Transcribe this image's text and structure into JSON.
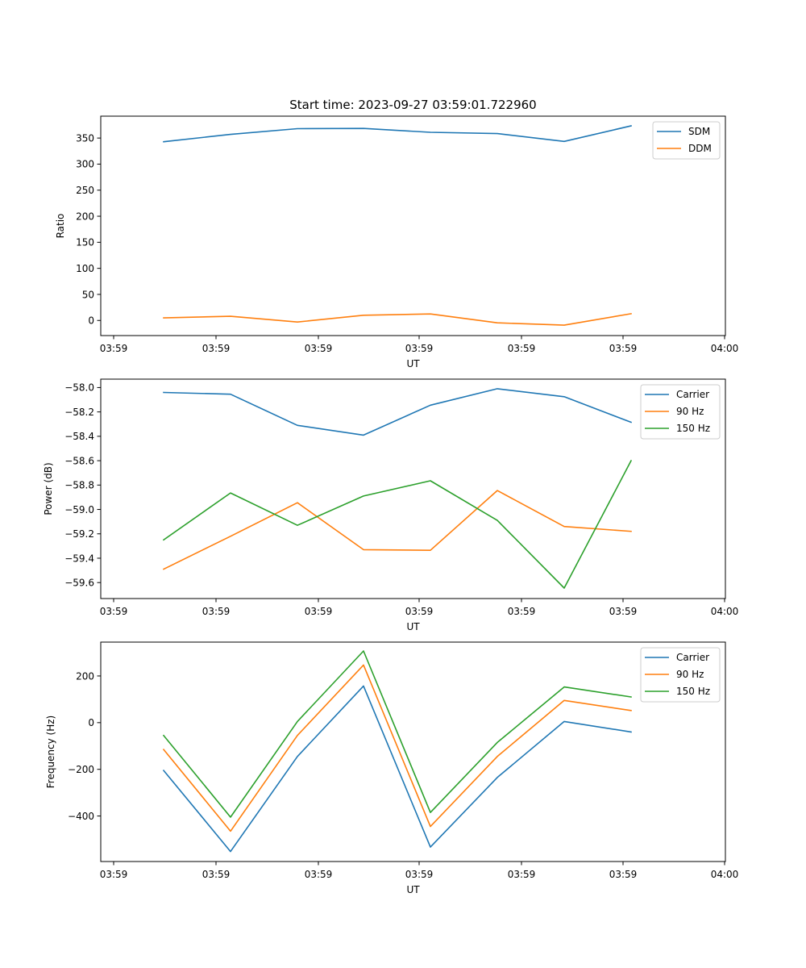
{
  "chart_data": [
    {
      "type": "line",
      "title": "Start time: 2023-09-27 03:59:01.722960",
      "xlabel": "UT",
      "ylabel": "Ratio",
      "legend": "top-right",
      "grid": false,
      "x_ticks": [
        "03:59",
        "03:59",
        "03:59",
        "03:59",
        "03:59",
        "03:59",
        "04:00"
      ],
      "x_points": [
        1,
        2,
        3,
        4,
        5,
        6,
        7,
        8
      ],
      "y_ticks": [
        0,
        50,
        100,
        150,
        200,
        250,
        300,
        350
      ],
      "ylim": [
        -29,
        392
      ],
      "series": [
        {
          "name": "SDM",
          "color": "#1f77b4",
          "values": [
            343,
            357,
            368,
            368.5,
            361,
            358.5,
            343.5,
            373.5
          ]
        },
        {
          "name": "DDM",
          "color": "#ff7f0e",
          "values": [
            5,
            8,
            -3,
            10,
            12.5,
            -4.5,
            -9,
            13
          ]
        }
      ]
    },
    {
      "type": "line",
      "title": "",
      "xlabel": "UT",
      "ylabel": "Power (dB)",
      "legend": "top-right",
      "grid": false,
      "x_ticks": [
        "03:59",
        "03:59",
        "03:59",
        "03:59",
        "03:59",
        "03:59",
        "04:00"
      ],
      "x_points": [
        1,
        2,
        3,
        4,
        5,
        6,
        7,
        8
      ],
      "y_ticks": [
        -59.6,
        -59.4,
        -59.2,
        -59.0,
        -58.8,
        -58.6,
        -58.4,
        -58.2,
        -58.0
      ],
      "ylim": [
        -59.731,
        -57.931
      ],
      "series": [
        {
          "name": "Carrier",
          "color": "#1f77b4",
          "values": [
            -58.04,
            -58.055,
            -58.31,
            -58.39,
            -58.145,
            -58.01,
            -58.075,
            -58.285
          ]
        },
        {
          "name": "90 Hz",
          "color": "#ff7f0e",
          "values": [
            -59.49,
            -59.22,
            -58.945,
            -59.33,
            -59.335,
            -58.845,
            -59.14,
            -59.18
          ]
        },
        {
          "name": "150 Hz",
          "color": "#2ca02c",
          "values": [
            -59.25,
            -58.865,
            -59.13,
            -58.89,
            -58.765,
            -59.09,
            -59.645,
            -58.6
          ]
        }
      ]
    },
    {
      "type": "line",
      "title": "",
      "xlabel": "UT",
      "ylabel": "Frequency (Hz)",
      "legend": "top-right",
      "grid": false,
      "x_ticks": [
        "03:59",
        "03:59",
        "03:59",
        "03:59",
        "03:59",
        "03:59",
        "04:00"
      ],
      "x_points": [
        1,
        2,
        3,
        4,
        5,
        6,
        7,
        8
      ],
      "y_ticks": [
        -400,
        -200,
        0,
        200
      ],
      "ylim": [
        -595,
        345
      ],
      "series": [
        {
          "name": "Carrier",
          "color": "#1f77b4",
          "values": [
            -205,
            -552,
            -145,
            157,
            -533,
            -235,
            5,
            -40
          ]
        },
        {
          "name": "90 Hz",
          "color": "#ff7f0e",
          "values": [
            -115,
            -465,
            -55,
            247,
            -445,
            -145,
            95,
            52
          ]
        },
        {
          "name": "150 Hz",
          "color": "#2ca02c",
          "values": [
            -55,
            -405,
            5,
            307,
            -385,
            -85,
            153,
            110
          ]
        }
      ]
    }
  ]
}
